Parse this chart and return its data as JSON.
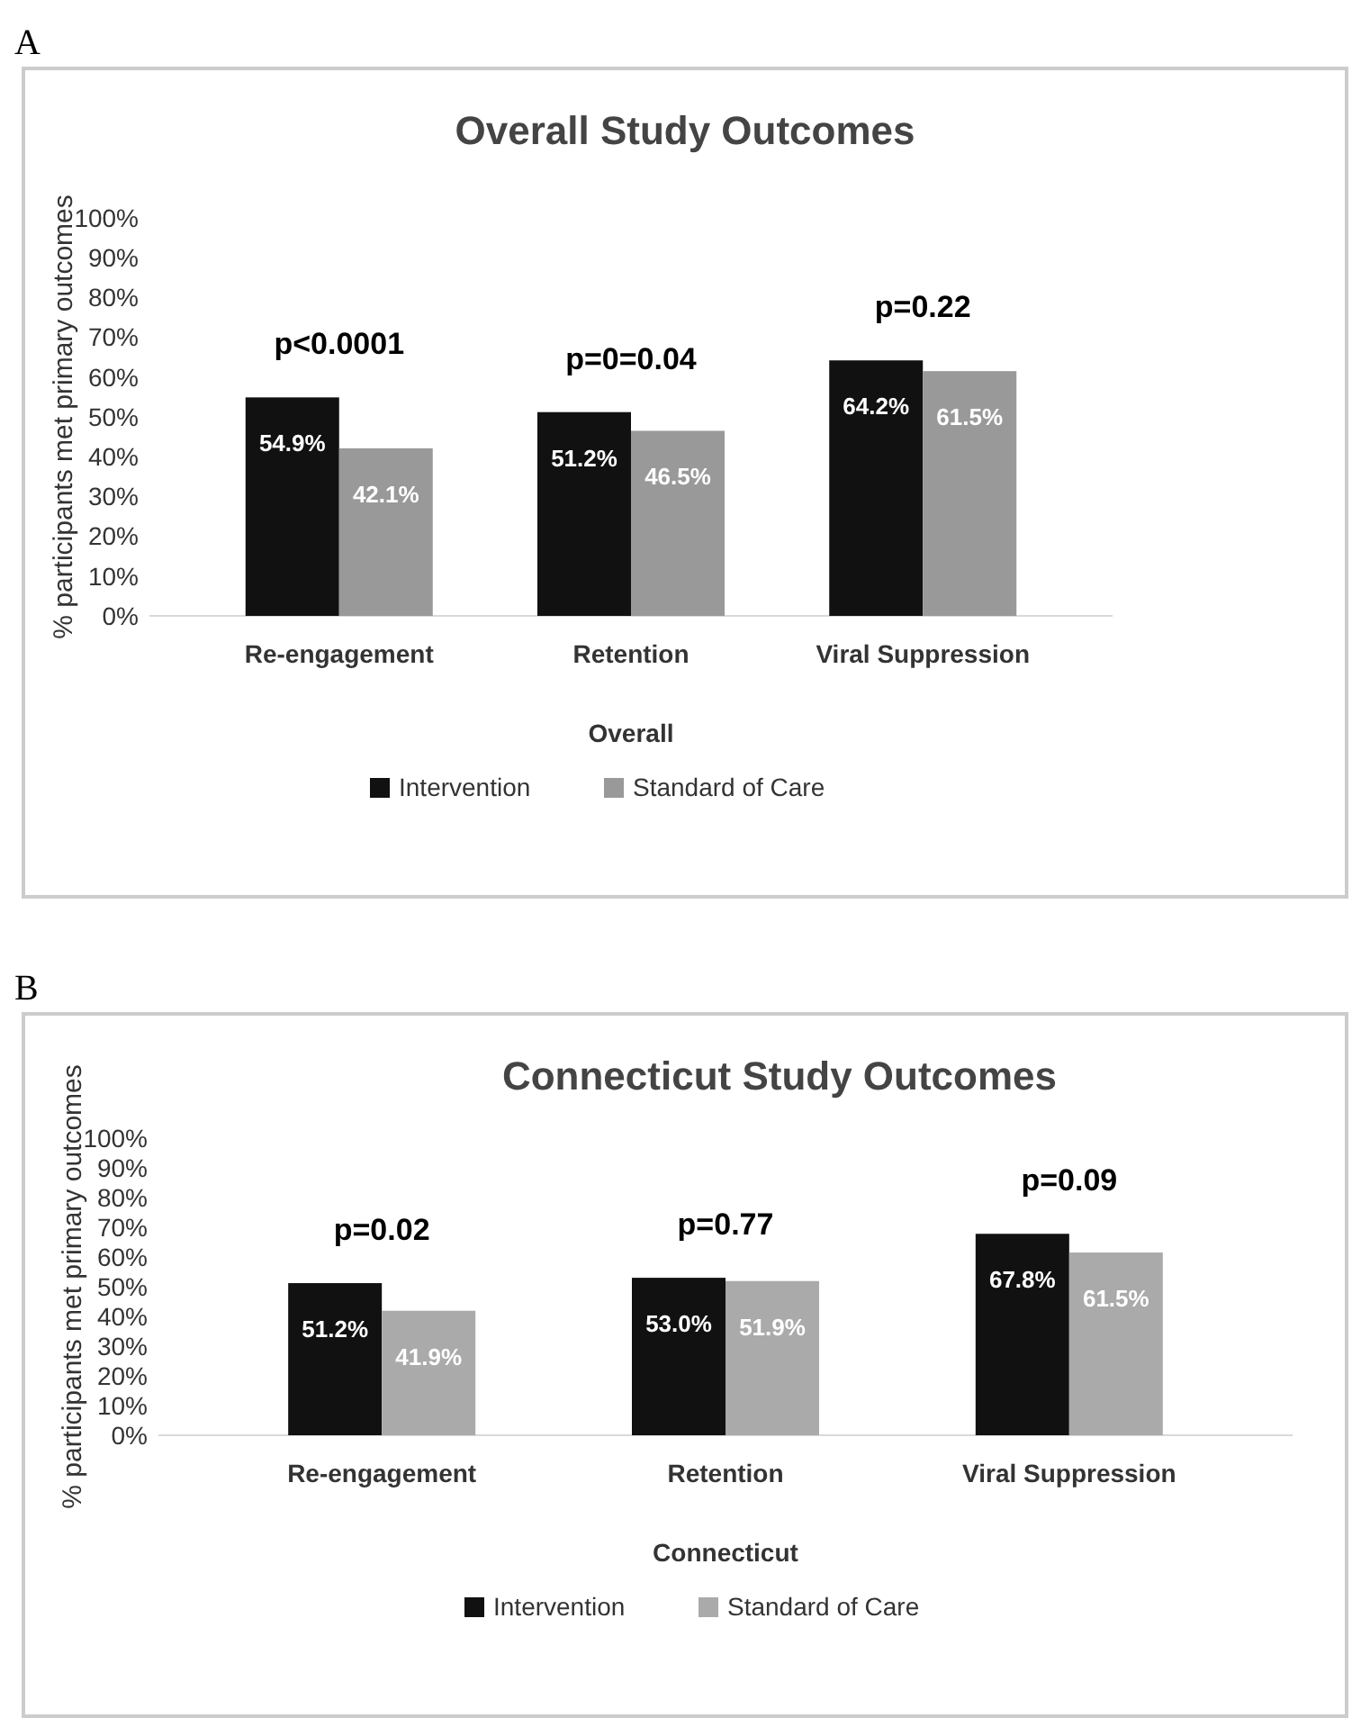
{
  "chart_data": [
    {
      "type": "bar",
      "title": "Overall Study Outcomes",
      "xlabel": "Overall",
      "ylabel": "% participants met primary outcomes",
      "categories": [
        "Re-engagement",
        "Retention",
        "Viral Suppression"
      ],
      "series": [
        {
          "name": "Intervention",
          "color": "#111111",
          "values": [
            54.9,
            51.2,
            64.2
          ],
          "value_labels": [
            "54.9%",
            "51.2%",
            "64.2%"
          ]
        },
        {
          "name": "Standard of Care",
          "color": "#999999",
          "values": [
            42.1,
            46.5,
            61.5
          ],
          "value_labels": [
            "42.1%",
            "46.5%",
            "61.5%"
          ]
        }
      ],
      "ylim": [
        0,
        100
      ],
      "yticks": [
        {
          "value": 0,
          "label": "0%"
        },
        {
          "value": 10,
          "label": "10%"
        },
        {
          "value": 20,
          "label": "20%"
        },
        {
          "value": 30,
          "label": "30%"
        },
        {
          "value": 40,
          "label": "40%"
        },
        {
          "value": 50,
          "label": "50%"
        },
        {
          "value": 60,
          "label": "60%"
        },
        {
          "value": 70,
          "label": "70%"
        },
        {
          "value": 80,
          "label": "80%"
        },
        {
          "value": 90,
          "label": "90%"
        },
        {
          "value": 100,
          "label": "100%"
        }
      ],
      "grid": false,
      "legend": "bottom",
      "annotations": [
        "A",
        "p<0.0001",
        "p=0=0.04",
        "p=0.22"
      ]
    },
    {
      "type": "bar",
      "title": "Connecticut Study Outcomes",
      "xlabel": "Connecticut",
      "ylabel": "% participants met primary outcomes",
      "categories": [
        "Re-engagement",
        "Retention",
        "Viral Suppression"
      ],
      "series": [
        {
          "name": "Intervention",
          "color": "#111111",
          "values": [
            51.2,
            53.0,
            67.8
          ],
          "value_labels": [
            "51.2%",
            "53.0%",
            "67.8%"
          ]
        },
        {
          "name": "Standard of Care",
          "color": "#aaaaaa",
          "values": [
            41.9,
            51.9,
            61.5
          ],
          "value_labels": [
            "41.9%",
            "51.9%",
            "61.5%"
          ]
        }
      ],
      "ylim": [
        0,
        100
      ],
      "yticks": [
        {
          "value": 0,
          "label": "0%"
        },
        {
          "value": 10,
          "label": "10%"
        },
        {
          "value": 20,
          "label": "20%"
        },
        {
          "value": 30,
          "label": "30%"
        },
        {
          "value": 40,
          "label": "40%"
        },
        {
          "value": 50,
          "label": "50%"
        },
        {
          "value": 60,
          "label": "60%"
        },
        {
          "value": 70,
          "label": "70%"
        },
        {
          "value": 80,
          "label": "80%"
        },
        {
          "value": 90,
          "label": "90%"
        },
        {
          "value": 100,
          "label": "100%"
        }
      ],
      "grid": false,
      "legend": "bottom",
      "annotations": [
        "B",
        "p=0.02",
        "p=0.77",
        "p=0.09"
      ]
    }
  ]
}
